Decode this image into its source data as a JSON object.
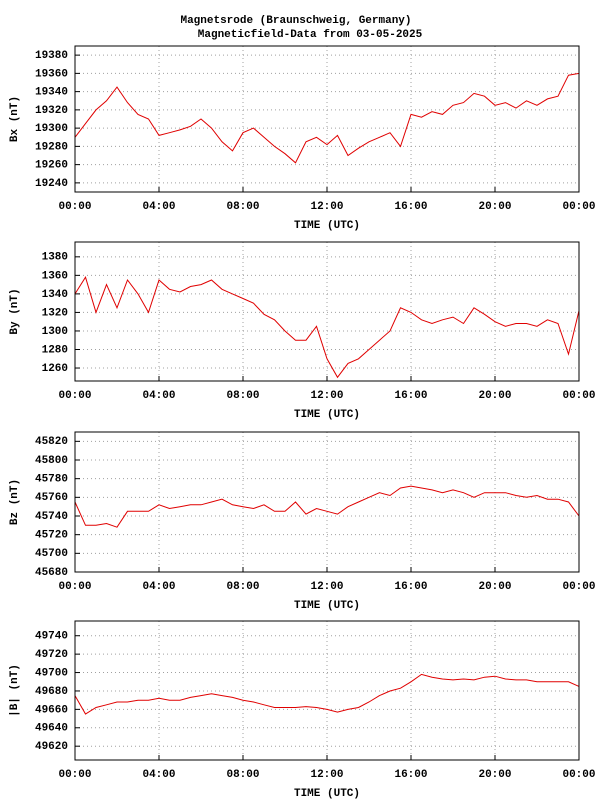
{
  "title": [
    "Magnetsrode (Braunschweig, Germany)",
    "Magneticfield-Data from 03-05-2025"
  ],
  "chart_data": [
    {
      "type": "line",
      "ylabel": "Bx (nT)",
      "xlabel": "TIME (UTC)",
      "grid": true,
      "xlim": [
        0,
        24
      ],
      "xticks": [
        {
          "value": 0,
          "label": "00:00"
        },
        {
          "value": 4,
          "label": "04:00"
        },
        {
          "value": 8,
          "label": "08:00"
        },
        {
          "value": 12,
          "label": "12:00"
        },
        {
          "value": 16,
          "label": "16:00"
        },
        {
          "value": 20,
          "label": "20:00"
        },
        {
          "value": 24,
          "label": "00:00"
        }
      ],
      "ylim": [
        19230,
        19390
      ],
      "yticks": [
        19240,
        19260,
        19280,
        19300,
        19320,
        19340,
        19360,
        19380
      ],
      "x": [
        0,
        0.5,
        1,
        1.5,
        2,
        2.5,
        3,
        3.5,
        4,
        4.5,
        5,
        5.5,
        6,
        6.5,
        7,
        7.5,
        8,
        8.5,
        9,
        9.5,
        10,
        10.5,
        11,
        11.5,
        12,
        12.5,
        13,
        13.5,
        14,
        14.5,
        15,
        15.5,
        16,
        16.5,
        17,
        17.5,
        18,
        18.5,
        19,
        19.5,
        20,
        20.5,
        21,
        21.5,
        22,
        22.5,
        23,
        23.5,
        24
      ],
      "series": [
        {
          "color": "#e00000",
          "values": [
            19290,
            19305,
            19320,
            19330,
            19345,
            19328,
            19315,
            19310,
            19292,
            19295,
            19298,
            19302,
            19310,
            19300,
            19285,
            19275,
            19295,
            19300,
            19290,
            19280,
            19272,
            19262,
            19285,
            19290,
            19282,
            19292,
            19270,
            19278,
            19285,
            19290,
            19295,
            19280,
            19315,
            19312,
            19318,
            19315,
            19325,
            19328,
            19338,
            19335,
            19325,
            19328,
            19322,
            19330,
            19325,
            19332,
            19335,
            19358,
            19360
          ]
        }
      ]
    },
    {
      "type": "line",
      "ylabel": "By (nT)",
      "xlabel": "TIME (UTC)",
      "grid": true,
      "xlim": [
        0,
        24
      ],
      "xticks": [
        {
          "value": 0,
          "label": "00:00"
        },
        {
          "value": 4,
          "label": "04:00"
        },
        {
          "value": 8,
          "label": "08:00"
        },
        {
          "value": 12,
          "label": "12:00"
        },
        {
          "value": 16,
          "label": "16:00"
        },
        {
          "value": 20,
          "label": "20:00"
        },
        {
          "value": 24,
          "label": "00:00"
        }
      ],
      "ylim": [
        1246,
        1396
      ],
      "yticks": [
        1260,
        1280,
        1300,
        1320,
        1340,
        1360,
        1380
      ],
      "x": [
        0,
        0.5,
        1,
        1.5,
        2,
        2.5,
        3,
        3.5,
        4,
        4.5,
        5,
        5.5,
        6,
        6.5,
        7,
        7.5,
        8,
        8.5,
        9,
        9.5,
        10,
        10.5,
        11,
        11.5,
        12,
        12.5,
        13,
        13.5,
        14,
        14.5,
        15,
        15.5,
        16,
        16.5,
        17,
        17.5,
        18,
        18.5,
        19,
        19.5,
        20,
        20.5,
        21,
        21.5,
        22,
        22.5,
        23,
        23.5,
        24
      ],
      "series": [
        {
          "color": "#e00000",
          "values": [
            1340,
            1358,
            1320,
            1350,
            1325,
            1355,
            1340,
            1320,
            1355,
            1345,
            1342,
            1348,
            1350,
            1355,
            1345,
            1340,
            1335,
            1330,
            1318,
            1312,
            1300,
            1290,
            1290,
            1305,
            1270,
            1250,
            1265,
            1270,
            1280,
            1290,
            1300,
            1325,
            1320,
            1312,
            1308,
            1312,
            1315,
            1308,
            1325,
            1318,
            1310,
            1305,
            1308,
            1308,
            1305,
            1312,
            1308,
            1275,
            1322
          ]
        }
      ]
    },
    {
      "type": "line",
      "ylabel": "Bz (nT)",
      "xlabel": "TIME (UTC)",
      "grid": true,
      "xlim": [
        0,
        24
      ],
      "xticks": [
        {
          "value": 0,
          "label": "00:00"
        },
        {
          "value": 4,
          "label": "04:00"
        },
        {
          "value": 8,
          "label": "08:00"
        },
        {
          "value": 12,
          "label": "12:00"
        },
        {
          "value": 16,
          "label": "16:00"
        },
        {
          "value": 20,
          "label": "20:00"
        },
        {
          "value": 24,
          "label": "00:00"
        }
      ],
      "ylim": [
        45680,
        45830
      ],
      "yticks": [
        45680,
        45700,
        45720,
        45740,
        45760,
        45780,
        45800,
        45820
      ],
      "x": [
        0,
        0.5,
        1,
        1.5,
        2,
        2.5,
        3,
        3.5,
        4,
        4.5,
        5,
        5.5,
        6,
        6.5,
        7,
        7.5,
        8,
        8.5,
        9,
        9.5,
        10,
        10.5,
        11,
        11.5,
        12,
        12.5,
        13,
        13.5,
        14,
        14.5,
        15,
        15.5,
        16,
        16.5,
        17,
        17.5,
        18,
        18.5,
        19,
        19.5,
        20,
        20.5,
        21,
        21.5,
        22,
        22.5,
        23,
        23.5,
        24
      ],
      "series": [
        {
          "color": "#e00000",
          "values": [
            45755,
            45730,
            45730,
            45732,
            45728,
            45745,
            45745,
            45745,
            45752,
            45748,
            45750,
            45752,
            45752,
            45755,
            45758,
            45752,
            45750,
            45748,
            45752,
            45745,
            45745,
            45755,
            45742,
            45748,
            45745,
            45742,
            45750,
            45755,
            45760,
            45765,
            45762,
            45770,
            45772,
            45770,
            45768,
            45765,
            45768,
            45765,
            45760,
            45765,
            45765,
            45765,
            45762,
            45760,
            45762,
            45758,
            45758,
            45755,
            45740
          ]
        }
      ]
    },
    {
      "type": "line",
      "ylabel": "|B| (nT)",
      "xlabel": "TIME (UTC)",
      "grid": true,
      "xlim": [
        0,
        24
      ],
      "xticks": [
        {
          "value": 0,
          "label": "00:00"
        },
        {
          "value": 4,
          "label": "04:00"
        },
        {
          "value": 8,
          "label": "08:00"
        },
        {
          "value": 12,
          "label": "12:00"
        },
        {
          "value": 16,
          "label": "16:00"
        },
        {
          "value": 20,
          "label": "20:00"
        },
        {
          "value": 24,
          "label": "00:00"
        }
      ],
      "ylim": [
        49605,
        49756
      ],
      "yticks": [
        49620,
        49640,
        49660,
        49680,
        49700,
        49720,
        49740
      ],
      "x": [
        0,
        0.5,
        1,
        1.5,
        2,
        2.5,
        3,
        3.5,
        4,
        4.5,
        5,
        5.5,
        6,
        6.5,
        7,
        7.5,
        8,
        8.5,
        9,
        9.5,
        10,
        10.5,
        11,
        11.5,
        12,
        12.5,
        13,
        13.5,
        14,
        14.5,
        15,
        15.5,
        16,
        16.5,
        17,
        17.5,
        18,
        18.5,
        19,
        19.5,
        20,
        20.5,
        21,
        21.5,
        22,
        22.5,
        23,
        23.5,
        24
      ],
      "series": [
        {
          "color": "#e00000",
          "values": [
            49675,
            49655,
            49662,
            49665,
            49668,
            49668,
            49670,
            49670,
            49672,
            49670,
            49670,
            49673,
            49675,
            49677,
            49675,
            49673,
            49670,
            49668,
            49665,
            49662,
            49662,
            49662,
            49663,
            49662,
            49660,
            49657,
            49660,
            49662,
            49668,
            49675,
            49680,
            49683,
            49690,
            49698,
            49695,
            49693,
            49692,
            49693,
            49692,
            49695,
            49696,
            49693,
            49692,
            49692,
            49690,
            49690,
            49690,
            49690,
            49685
          ]
        }
      ]
    }
  ]
}
